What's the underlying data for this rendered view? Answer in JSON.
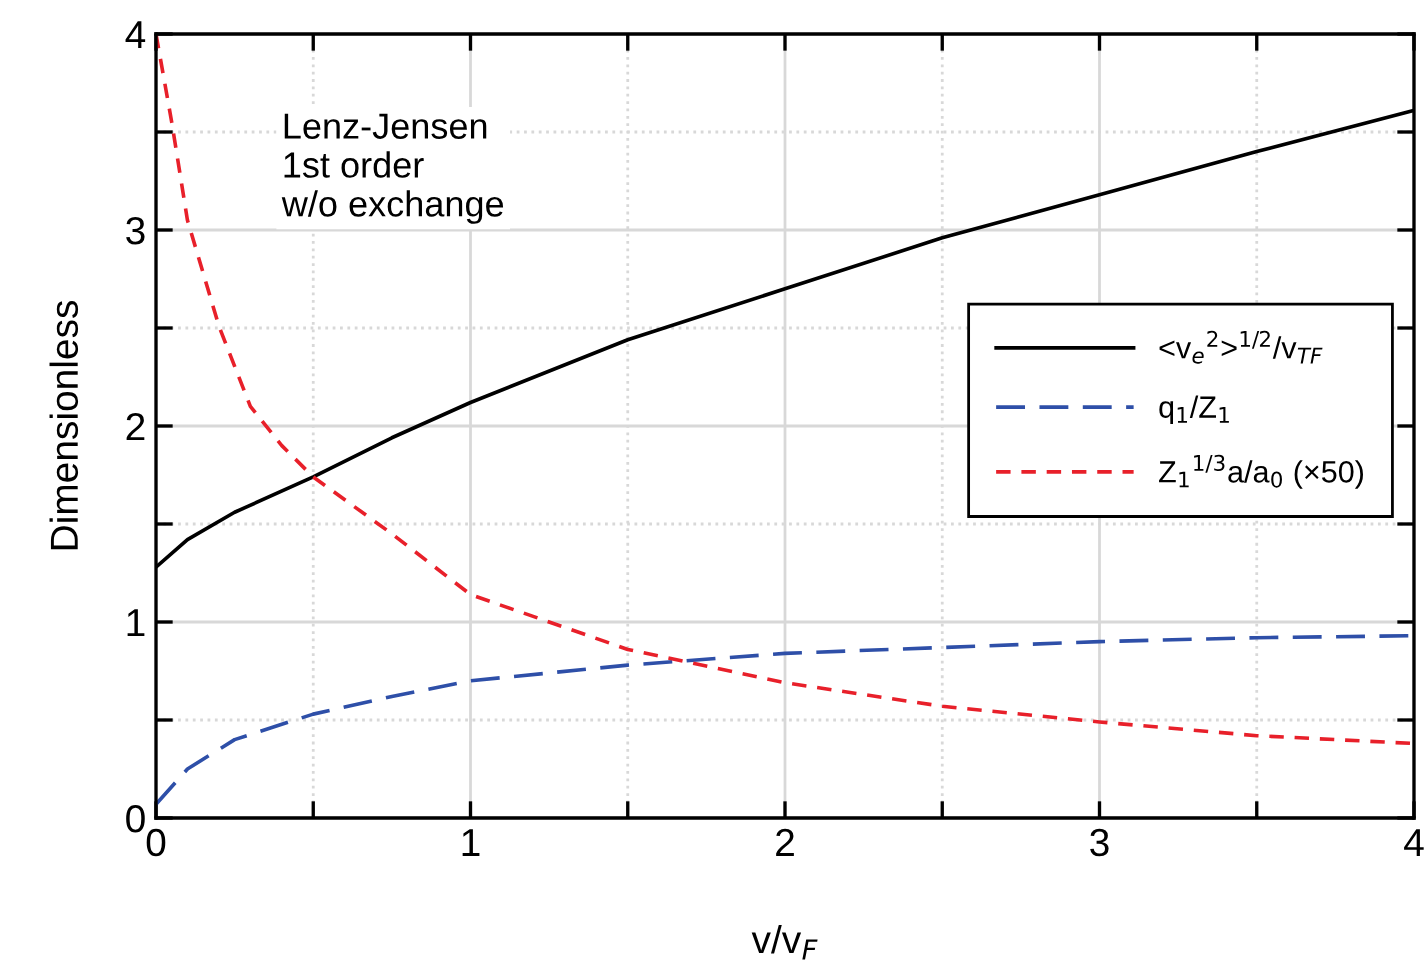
{
  "chart_data": {
    "type": "line",
    "xlabel": "v/v$_{F}$",
    "ylabel": "Dimensionless",
    "annotations": [
      "Lenz-Jensen\n1st order\nw/o exchange"
    ],
    "xlim": [
      0,
      4
    ],
    "ylim": [
      0,
      4
    ],
    "xticks": [
      0,
      {
        "value": 0.5,
        "label": null
      },
      1,
      {
        "value": 1.5,
        "label": null
      },
      2,
      {
        "value": 2.5,
        "label": null
      },
      3,
      {
        "value": 3.5,
        "label": null
      },
      4
    ],
    "yticks": [
      0,
      {
        "value": 0.5,
        "label": null
      },
      1,
      {
        "value": 1.5,
        "label": null
      },
      2,
      {
        "value": 2.5,
        "label": null
      },
      3,
      {
        "value": 3.5,
        "label": null
      },
      4
    ],
    "grid": true,
    "legend": "right",
    "marker": "none",
    "series": [
      {
        "name": "<v$_{e}$$^{2}$>$^{1/2}$/v$_{TF}$",
        "color": "#000000",
        "line_style": "solid",
        "x": [
          0,
          0.1,
          0.25,
          0.5,
          0.75,
          1,
          1.5,
          2,
          2.5,
          3,
          3.5,
          4
        ],
        "values": [
          1.28,
          1.42,
          1.56,
          1.74,
          1.94,
          2.12,
          2.44,
          2.7,
          2.96,
          3.18,
          3.4,
          3.61
        ]
      },
      {
        "name": "q$_{1}$/Z$_{1}$",
        "color": "#2e4fa8",
        "line_style": "dashed",
        "x": [
          0,
          0.1,
          0.25,
          0.5,
          0.75,
          1,
          1.5,
          2,
          2.5,
          3,
          3.5,
          4
        ],
        "values": [
          0.07,
          0.25,
          0.4,
          0.53,
          0.62,
          0.7,
          0.78,
          0.84,
          0.87,
          0.9,
          0.92,
          0.93
        ]
      },
      {
        "name": "Z$_{1}$$^{1/3}$a/a$_{0}$ (×50)",
        "color": "#e8202a",
        "line_style": "dotted",
        "x": [
          0,
          0.05,
          0.1,
          0.2,
          0.3,
          0.4,
          0.5,
          0.75,
          1,
          1.5,
          2,
          2.5,
          3,
          3.5,
          4
        ],
        "values": [
          4.0,
          3.55,
          3.05,
          2.51,
          2.1,
          1.9,
          1.74,
          1.45,
          1.14,
          0.86,
          0.69,
          0.57,
          0.49,
          0.42,
          0.38
        ]
      }
    ]
  }
}
